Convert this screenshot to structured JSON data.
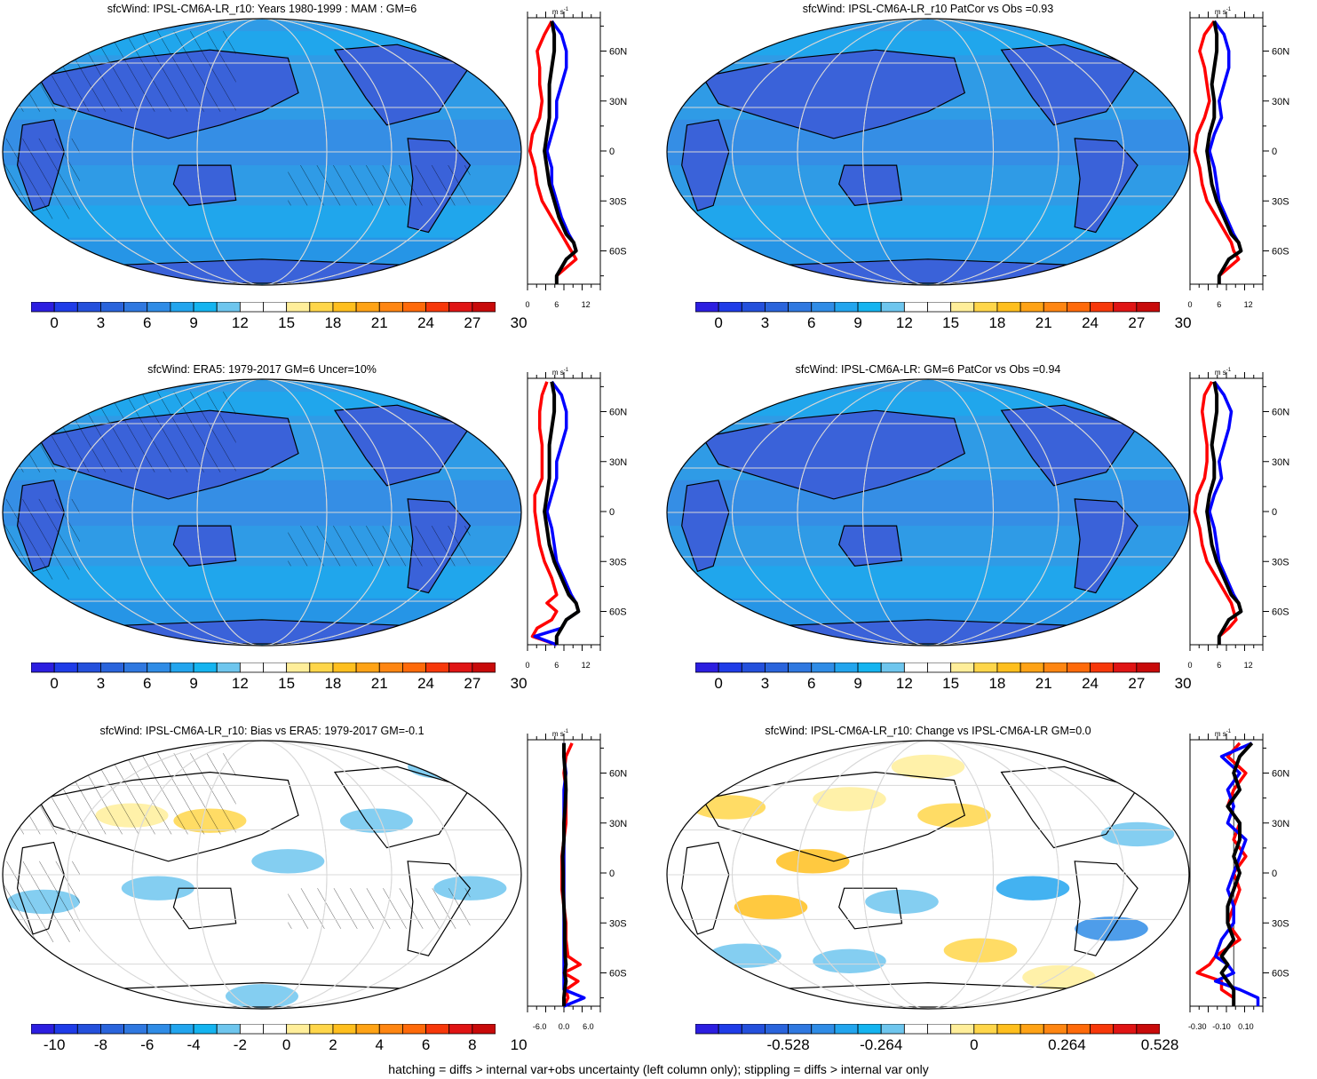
{
  "footnote": "hatching = diffs > internal var+obs uncertainty (left column only); stippling = diffs > internal var only",
  "profile_unit": "m s",
  "profile_unit_exp": "-1",
  "lat_labels": [
    "60N",
    "30N",
    "0",
    "30S",
    "60S"
  ],
  "colors": {
    "ocean_mean": "#2f9be6",
    "land_mean": "#3a62d9",
    "red_series": "#ff0000",
    "blue_series": "#0000ff",
    "black_series": "#000000"
  },
  "scales": {
    "mean": {
      "colors": [
        "#2c1ee0",
        "#1f3ce8",
        "#2450dc",
        "#2a64dc",
        "#2f78e0",
        "#2f8ce6",
        "#22a5ee",
        "#14b4f0",
        "#6ec6ee",
        "#ffffff",
        "#ffffff",
        "#ffee9a",
        "#ffd64a",
        "#ffbf1e",
        "#ffa316",
        "#ff8612",
        "#ff6a0a",
        "#f7380a",
        "#e01414",
        "#c80a0a"
      ],
      "labels": [
        "0",
        "3",
        "6",
        "9",
        "12",
        "15",
        "18",
        "21",
        "24",
        "27",
        "30"
      ]
    },
    "bias": {
      "colors": [
        "#2c1ee0",
        "#1f3ce8",
        "#2450dc",
        "#2a64dc",
        "#2f78e0",
        "#2f8ce6",
        "#22a5ee",
        "#14b4f0",
        "#6ec6ee",
        "#ffffff",
        "#ffffff",
        "#ffee9a",
        "#ffd64a",
        "#ffbf1e",
        "#ffa316",
        "#ff8612",
        "#ff6a0a",
        "#f7380a",
        "#e01414",
        "#c80a0a"
      ],
      "labels": [
        "-10",
        "-8",
        "-6",
        "-4",
        "-2",
        "0",
        "2",
        "4",
        "6",
        "8",
        "10"
      ]
    },
    "change": {
      "colors": [
        "#2c1ee0",
        "#1f3ce8",
        "#2450dc",
        "#2a64dc",
        "#2f78e0",
        "#2f8ce6",
        "#22a5ee",
        "#14b4f0",
        "#6ec6ee",
        "#ffffff",
        "#ffffff",
        "#ffee9a",
        "#ffd64a",
        "#ffbf1e",
        "#ffa316",
        "#ff8612",
        "#ff6a0a",
        "#f7380a",
        "#e01414",
        "#c80a0a"
      ],
      "labels": [
        "-0.528",
        "-0.264",
        "0",
        "0.264",
        "0.528"
      ]
    }
  },
  "panels": [
    {
      "id": "p1",
      "title": "sfcWind: IPSL-CM6A-LR_r10: Years 1980-1999 : MAM : GM=6",
      "map_kind": "mean",
      "ocean": "#2f9be6",
      "hatch": true,
      "profile_ticks": [
        "0",
        "6",
        "12"
      ],
      "colorbar": "mean"
    },
    {
      "id": "p2",
      "title": "sfcWind: IPSL-CM6A-LR_r10 PatCor vs Obs =0.93",
      "map_kind": "mean",
      "ocean": "#2f9be6",
      "hatch": false,
      "profile_ticks": [
        "0",
        "6",
        "12"
      ],
      "colorbar": "mean"
    },
    {
      "id": "p3",
      "title": "sfcWind: ERA5: 1979-2017 GM=6 Uncer=10%",
      "map_kind": "mean",
      "ocean": "#2f9be6",
      "hatch": true,
      "profile_ticks": [
        "0",
        "6",
        "12"
      ],
      "colorbar": "mean"
    },
    {
      "id": "p4",
      "title": "sfcWind: IPSL-CM6A-LR: GM=6 PatCor vs Obs =0.94",
      "map_kind": "mean",
      "ocean": "#2f9be6",
      "hatch": false,
      "profile_ticks": [
        "0",
        "6",
        "12"
      ],
      "colorbar": "mean"
    },
    {
      "id": "p5",
      "title": "sfcWind: IPSL-CM6A-LR_r10: Bias vs ERA5: 1979-2017 GM=-0.1",
      "map_kind": "bias",
      "ocean": "#ffffff",
      "hatch": true,
      "profile_ticks": [
        "-6.0",
        "0.0",
        "6.0"
      ],
      "colorbar": "bias"
    },
    {
      "id": "p6",
      "title": "sfcWind: IPSL-CM6A-LR_r10: Change vs IPSL-CM6A-LR GM=0.0",
      "map_kind": "change",
      "ocean": "#ffffff",
      "hatch": false,
      "profile_ticks": [
        "-0.30",
        "-0.10",
        "0.10"
      ],
      "colorbar": "change"
    }
  ],
  "chart_data": [
    {
      "type": "line",
      "title": "sfcWind: IPSL-CM6A-LR_r10: Years 1980-1999 : MAM : GM=6",
      "xlabel": "m s-1",
      "x_ticks": [
        0,
        6,
        12
      ],
      "xlim": [
        0,
        15
      ],
      "ylim": [
        -80,
        80
      ],
      "y_ticks": [
        "60N",
        "30N",
        "0",
        "30S",
        "60S"
      ],
      "lat": [
        78,
        70,
        60,
        50,
        40,
        30,
        20,
        10,
        0,
        -10,
        -20,
        -30,
        -40,
        -50,
        -55,
        -60,
        -65,
        -70,
        -75,
        -80
      ],
      "series": [
        {
          "color": "red",
          "values": [
            5,
            3.5,
            2,
            2.5,
            2.5,
            3,
            2.5,
            1,
            0.5,
            1.5,
            2,
            3,
            5,
            7,
            8,
            9,
            10,
            8,
            6,
            6
          ]
        },
        {
          "color": "blue",
          "values": [
            5,
            7,
            8,
            8,
            7,
            6,
            6,
            5,
            4,
            5,
            5,
            6,
            7,
            8.5,
            9.5,
            10,
            8,
            7,
            6,
            6
          ]
        },
        {
          "color": "black",
          "values": [
            5,
            5.5,
            5.5,
            5,
            4.5,
            4.5,
            4.5,
            4,
            3.5,
            4,
            4.5,
            5.5,
            6.5,
            8,
            9.5,
            10,
            8,
            7,
            6,
            6
          ]
        }
      ]
    },
    {
      "type": "line",
      "title": "sfcWind: IPSL-CM6A-LR_r10 PatCor vs Obs =0.93",
      "xlabel": "m s-1",
      "x_ticks": [
        0,
        6,
        12
      ],
      "xlim": [
        0,
        15
      ],
      "ylim": [
        -80,
        80
      ],
      "y_ticks": [
        "60N",
        "30N",
        "0",
        "30S",
        "60S"
      ],
      "lat": [
        78,
        70,
        60,
        50,
        40,
        30,
        20,
        10,
        0,
        -10,
        -20,
        -30,
        -40,
        -50,
        -55,
        -60,
        -65,
        -70,
        -75,
        -80
      ],
      "series": [
        {
          "color": "red",
          "values": [
            5,
            3,
            2,
            3,
            3.5,
            4,
            3,
            1.5,
            1,
            2,
            2.5,
            3.5,
            5.5,
            7.5,
            8.5,
            9,
            10,
            8,
            6,
            6
          ]
        },
        {
          "color": "blue",
          "values": [
            5,
            7,
            8,
            8,
            7,
            6,
            6.5,
            5,
            4,
            5,
            5.5,
            6,
            7.5,
            9,
            10,
            10.5,
            8,
            7,
            6,
            6
          ]
        },
        {
          "color": "black",
          "values": [
            5,
            5.5,
            5.5,
            5,
            4.5,
            5,
            5,
            4,
            3.5,
            4,
            4.5,
            5.5,
            7,
            8.5,
            10,
            10.5,
            8,
            7,
            6,
            6
          ]
        }
      ]
    },
    {
      "type": "line",
      "title": "sfcWind: ERA5: 1979-2017 GM=6 Uncer=10%",
      "xlabel": "m s-1",
      "x_ticks": [
        0,
        6,
        12
      ],
      "xlim": [
        0,
        15
      ],
      "ylim": [
        -80,
        80
      ],
      "y_ticks": [
        "60N",
        "30N",
        "0",
        "30S",
        "60S"
      ],
      "lat": [
        78,
        70,
        60,
        50,
        40,
        30,
        20,
        10,
        0,
        -10,
        -20,
        -30,
        -40,
        -50,
        -55,
        -60,
        -65,
        -70,
        -75,
        -80
      ],
      "series": [
        {
          "color": "red",
          "values": [
            4,
            3,
            2.5,
            2.5,
            3,
            3,
            3,
            1.5,
            1.5,
            2,
            2.5,
            3.5,
            5,
            6,
            4,
            6,
            5,
            2,
            1,
            6
          ]
        },
        {
          "color": "blue",
          "values": [
            5,
            7,
            8,
            8,
            7,
            6,
            6,
            5,
            4,
            5,
            5.5,
            6,
            7.5,
            9,
            10,
            10.5,
            8,
            7,
            1.5,
            6
          ]
        },
        {
          "color": "black",
          "values": [
            5,
            5.5,
            5.5,
            5,
            4.5,
            4.5,
            4.5,
            4,
            3.5,
            4,
            4.5,
            5.5,
            7,
            8.5,
            10,
            10.5,
            8,
            7,
            6,
            6
          ]
        }
      ]
    },
    {
      "type": "line",
      "title": "sfcWind: IPSL-CM6A-LR: GM=6 PatCor vs Obs =0.94",
      "xlabel": "m s-1",
      "x_ticks": [
        0,
        6,
        12
      ],
      "xlim": [
        0,
        15
      ],
      "ylim": [
        -80,
        80
      ],
      "y_ticks": [
        "60N",
        "30N",
        "0",
        "30S",
        "60S"
      ],
      "lat": [
        78,
        70,
        60,
        50,
        40,
        30,
        20,
        10,
        0,
        -10,
        -20,
        -30,
        -40,
        -50,
        -55,
        -60,
        -65,
        -70,
        -75,
        -80
      ],
      "series": [
        {
          "color": "red",
          "values": [
            4.5,
            3,
            2.5,
            3,
            3.5,
            3.5,
            3,
            1.5,
            1,
            2,
            2.5,
            3.5,
            5.5,
            7.5,
            8.5,
            9,
            9.5,
            8,
            6,
            6
          ]
        },
        {
          "color": "blue",
          "values": [
            5,
            7,
            8.5,
            8,
            7,
            6,
            6.5,
            5,
            4,
            5,
            5.5,
            6,
            7.5,
            9,
            10,
            10.5,
            8,
            7,
            6,
            6
          ]
        },
        {
          "color": "black",
          "values": [
            5,
            5.5,
            5.5,
            5,
            4.5,
            5,
            5,
            4,
            3.5,
            4,
            4.5,
            5.5,
            7,
            8.5,
            10,
            10.5,
            8,
            7,
            6,
            6
          ]
        }
      ]
    },
    {
      "type": "line",
      "title": "sfcWind: IPSL-CM6A-LR_r10: Bias vs ERA5: 1979-2017 GM=-0.1",
      "xlabel": "m s-1",
      "x_ticks": [
        -6,
        0,
        6
      ],
      "xlim": [
        -9,
        9
      ],
      "ylim": [
        -80,
        80
      ],
      "y_ticks": [
        "60N",
        "30N",
        "0",
        "30S",
        "60S"
      ],
      "lat": [
        78,
        70,
        60,
        50,
        40,
        30,
        20,
        10,
        0,
        -10,
        -20,
        -30,
        -40,
        -50,
        -55,
        -60,
        -65,
        -70,
        -75,
        -80
      ],
      "series": [
        {
          "color": "red",
          "values": [
            2,
            0.5,
            0,
            0.5,
            0.5,
            0.5,
            0,
            -0.5,
            -0.5,
            -0.5,
            0,
            0.5,
            0.5,
            1,
            4,
            0,
            3.5,
            0.5,
            1,
            0
          ]
        },
        {
          "color": "blue",
          "values": [
            0,
            0,
            0.5,
            0,
            0,
            0,
            0,
            0,
            0,
            0,
            0,
            0,
            0,
            0,
            0,
            0,
            0,
            0,
            5,
            0
          ]
        },
        {
          "color": "black",
          "values": [
            0,
            0,
            0.3,
            0.5,
            0.3,
            0,
            0,
            -0.3,
            -0.2,
            -0.2,
            0,
            0.2,
            0.2,
            0.3,
            0.5,
            0.2,
            0.5,
            0.2,
            0,
            0
          ]
        }
      ]
    },
    {
      "type": "line",
      "title": "sfcWind: IPSL-CM6A-LR_r10: Change vs IPSL-CM6A-LR GM=0.0",
      "xlabel": "m s-1",
      "x_ticks": [
        -0.3,
        -0.1,
        0.1
      ],
      "xlim": [
        -0.36,
        0.24
      ],
      "ylim": [
        -80,
        80
      ],
      "y_ticks": [
        "60N",
        "30N",
        "0",
        "30S",
        "60S"
      ],
      "lat": [
        78,
        70,
        60,
        50,
        40,
        30,
        20,
        10,
        0,
        -10,
        -20,
        -30,
        -40,
        -50,
        -55,
        -60,
        -65,
        -70,
        -75,
        -80
      ],
      "series": [
        {
          "color": "red",
          "values": [
            0.05,
            -0.05,
            0.1,
            0,
            -0.05,
            0.05,
            0.0,
            0.1,
            0.0,
            0.05,
            0.0,
            -0.05,
            0.05,
            -0.15,
            -0.2,
            -0.3,
            -0.1,
            -0.1,
            0.0,
            0.0
          ]
        },
        {
          "color": "blue",
          "values": [
            0.15,
            -0.1,
            0.05,
            -0.05,
            0.0,
            -0.05,
            0.1,
            0.05,
            0.0,
            -0.05,
            0.0,
            0.0,
            -0.1,
            -0.15,
            -0.05,
            0.0,
            -0.15,
            0.05,
            0.2,
            0.2
          ]
        },
        {
          "color": "black",
          "values": [
            0.15,
            0.05,
            0.0,
            0.05,
            -0.05,
            0.05,
            0.05,
            0.0,
            0.05,
            0.0,
            -0.05,
            -0.05,
            0.0,
            -0.1,
            -0.05,
            -0.1,
            -0.05,
            0.0,
            0.0,
            0.0
          ]
        }
      ]
    }
  ]
}
